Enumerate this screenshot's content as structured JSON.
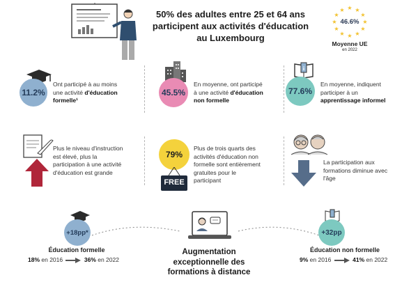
{
  "headline": {
    "line1": "50% des adultes entre 25 et 64 ans",
    "line2": "participent aux activités d'éducation",
    "line3": "au Luxembourg"
  },
  "eu_average": {
    "value": "46.6%",
    "label": "Moyenne UE",
    "sub": "en 2022"
  },
  "stats_row1": [
    {
      "value": "11.2%",
      "text1": "Ont participé à au moins",
      "text2a": "une activité ",
      "text2b": "d'éducation",
      "text3": "formelle¹",
      "color": "#8fb0cf"
    },
    {
      "value": "45.5%",
      "text1": "En moyenne, ont participé",
      "text2a": "à une activité ",
      "text2b": "d'éducation",
      "text3": "non formelle",
      "color": "#e98bb4"
    },
    {
      "value": "77.6%",
      "text1": "En moyenne, indiquent",
      "text2a": "participer à un",
      "text3": "apprentissage informel",
      "color": "#7dc9c0"
    }
  ],
  "stats_row2": [
    {
      "lines": [
        "Plus le niveau d'instruction",
        "est élevé, plus la",
        "participation à une activité",
        "d'éducation est grande"
      ]
    },
    {
      "value": "79%",
      "badge": "FREE",
      "lines": [
        "Plus de trois quarts des",
        "activités d'éducation non",
        "formelle sont entièrement",
        "gratuites pour le",
        "participant"
      ],
      "color": "#f4d23c"
    },
    {
      "lines": [
        "La participation aux",
        "formations diminue avec",
        "l'âge"
      ]
    }
  ],
  "bottom_left": {
    "badge": "+18pp*",
    "title": "Éducation formelle",
    "v2016": "18%",
    "lbl2016": " en 2016",
    "v2022": "36%",
    "lbl2022": " en 2022",
    "color": "#8fb0cf"
  },
  "bottom_right": {
    "badge": "+32pp",
    "title": "Éducation non formelle",
    "v2016": "9%",
    "lbl2016": " en 2016",
    "v2022": "41%",
    "lbl2022": " en 2022",
    "color": "#7dc9c0"
  },
  "center": {
    "line1": "Augmentation",
    "line2": "exceptionnelle des",
    "line3": "formations à distance"
  }
}
